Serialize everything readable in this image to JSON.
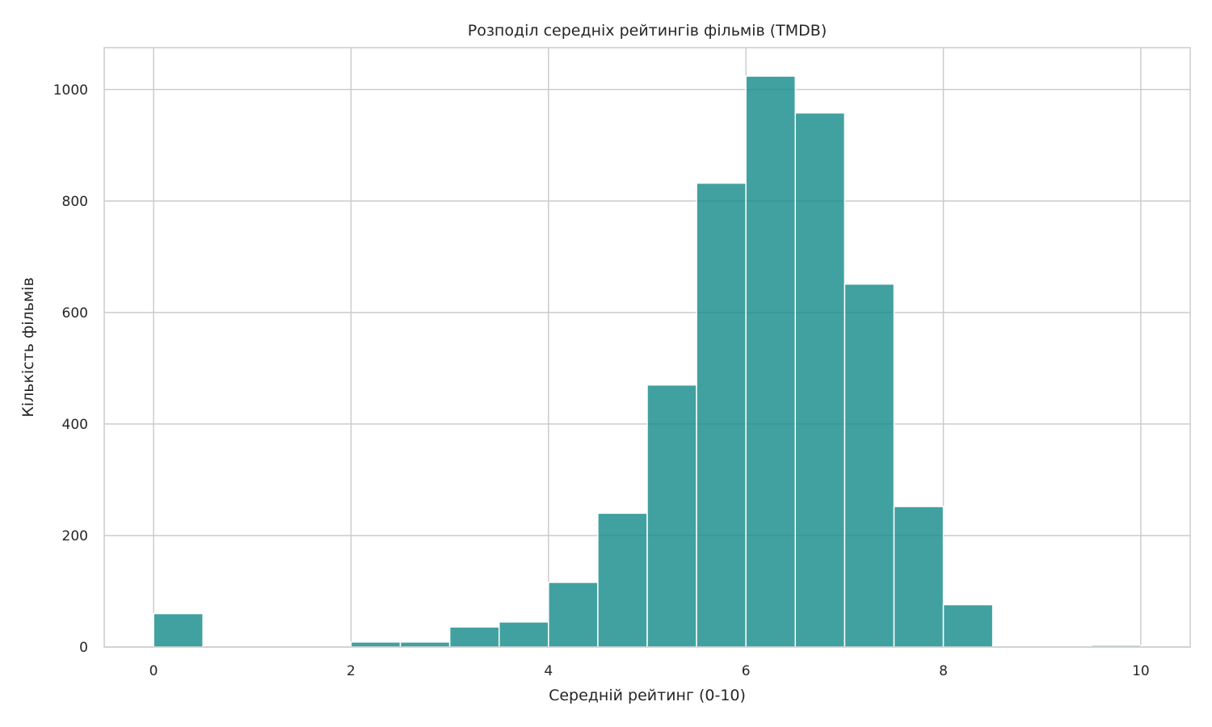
{
  "chart_data": {
    "type": "bar",
    "title": "Розподіл середніх рейтингів фільмів (TMDB)",
    "xlabel": "Середній рейтинг (0-10)",
    "ylabel": "Кількість фільмів",
    "bin_width": 0.5,
    "bins": [
      {
        "x0": 0.0,
        "x1": 0.5,
        "count": 60
      },
      {
        "x0": 0.5,
        "x1": 1.0,
        "count": 0
      },
      {
        "x0": 1.0,
        "x1": 1.5,
        "count": 0
      },
      {
        "x0": 1.5,
        "x1": 2.0,
        "count": 0
      },
      {
        "x0": 2.0,
        "x1": 2.5,
        "count": 9
      },
      {
        "x0": 2.5,
        "x1": 3.0,
        "count": 9
      },
      {
        "x0": 3.0,
        "x1": 3.5,
        "count": 36
      },
      {
        "x0": 3.5,
        "x1": 4.0,
        "count": 45
      },
      {
        "x0": 4.0,
        "x1": 4.5,
        "count": 116
      },
      {
        "x0": 4.5,
        "x1": 5.0,
        "count": 240
      },
      {
        "x0": 5.0,
        "x1": 5.5,
        "count": 470
      },
      {
        "x0": 5.5,
        "x1": 6.0,
        "count": 832
      },
      {
        "x0": 6.0,
        "x1": 6.5,
        "count": 1024
      },
      {
        "x0": 6.5,
        "x1": 7.0,
        "count": 958
      },
      {
        "x0": 7.0,
        "x1": 7.5,
        "count": 651
      },
      {
        "x0": 7.5,
        "x1": 8.0,
        "count": 252
      },
      {
        "x0": 8.0,
        "x1": 8.5,
        "count": 76
      },
      {
        "x0": 8.5,
        "x1": 9.0,
        "count": 0
      },
      {
        "x0": 9.0,
        "x1": 9.5,
        "count": 0
      },
      {
        "x0": 9.5,
        "x1": 10.0,
        "count": 3
      }
    ],
    "xlim": [
      -0.5,
      10.5
    ],
    "ylim": [
      0,
      1075
    ],
    "xticks": [
      0,
      2,
      4,
      6,
      8,
      10
    ],
    "yticks": [
      0,
      200,
      400,
      600,
      800,
      1000
    ],
    "grid": true,
    "bar_color": "#128a88",
    "bar_opacity": 0.8,
    "grid_color": "#cccccc",
    "spine_color": "#cccccc"
  }
}
